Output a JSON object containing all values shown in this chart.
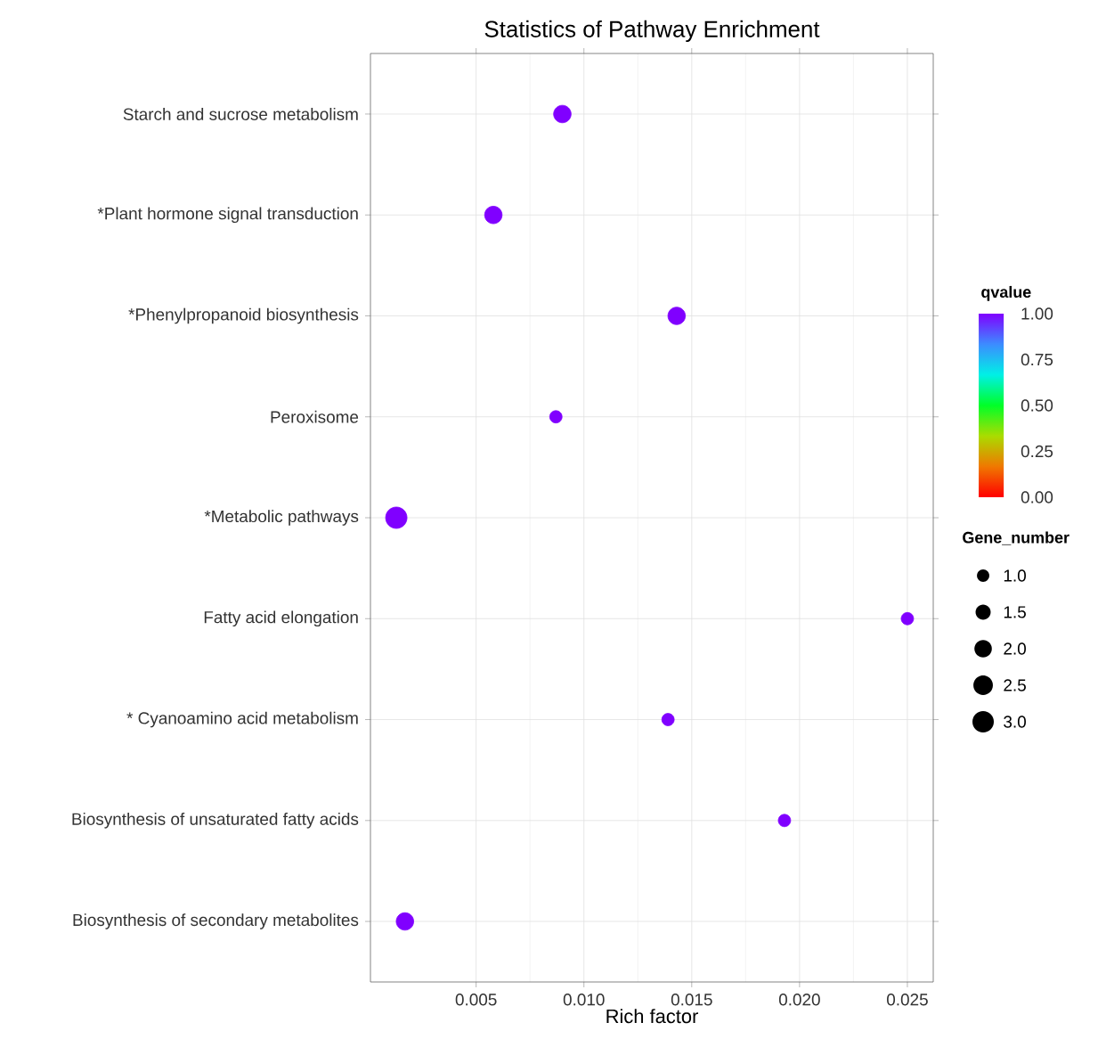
{
  "chart_data": {
    "type": "bubble",
    "orientation": "horizontal",
    "title": "Statistics of Pathway Enrichment",
    "xlabel": "Rich factor",
    "clabel": "qvalue",
    "legend_title": "Gene_number",
    "categories": [
      "Starch and sucrose metabolism",
      "*Plant hormone signal transduction",
      "*Phenylpropanoid biosynthesis",
      "Peroxisome",
      "*Metabolic pathways",
      "Fatty acid elongation",
      "* Cyanoamino acid metabolism",
      "Biosynthesis of unsaturated fatty acids",
      "Biosynthesis of secondary metabolites"
    ],
    "values": [
      0.009,
      0.0058,
      0.0143,
      0.0087,
      0.0013,
      0.025,
      0.0139,
      0.0193,
      0.0017
    ],
    "sizes": [
      2,
      2,
      2,
      1,
      3,
      1,
      1,
      1,
      2
    ],
    "cvalues": [
      1,
      1,
      1,
      1,
      1,
      1,
      1,
      1,
      1
    ],
    "size_legend": [
      {
        "value": 1,
        "label": "1.0"
      },
      {
        "value": 1.5,
        "label": "1.5"
      },
      {
        "value": 2,
        "label": "2.0"
      },
      {
        "value": 2.5,
        "label": "2.5"
      },
      {
        "value": 3,
        "label": "3.0"
      }
    ],
    "clim": [
      0,
      1
    ],
    "cticks": [
      {
        "value": 0,
        "label": "0.00"
      },
      {
        "value": 0.25,
        "label": "0.25"
      },
      {
        "value": 0.5,
        "label": "0.50"
      },
      {
        "value": 0.75,
        "label": "0.75"
      },
      {
        "value": 1,
        "label": "1.00"
      }
    ],
    "xlim": [
      0.0001,
      0.0262
    ],
    "xticks": [
      0.005,
      {
        "value": 0.01,
        "label": "0.010"
      },
      0.015,
      {
        "value": 0.02,
        "label": "0.020"
      },
      0.025
    ],
    "grid": true
  }
}
